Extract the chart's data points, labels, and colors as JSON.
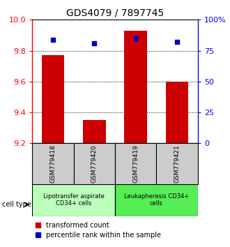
{
  "title": "GDS4079 / 7897745",
  "samples": [
    "GSM779418",
    "GSM779420",
    "GSM779419",
    "GSM779421"
  ],
  "transformed_counts": [
    9.77,
    9.35,
    9.93,
    9.6
  ],
  "percentile_ranks": [
    84,
    81,
    85,
    82
  ],
  "ylim_left": [
    9.2,
    10.0
  ],
  "ylim_right": [
    0,
    100
  ],
  "yticks_left": [
    9.2,
    9.4,
    9.6,
    9.8,
    10.0
  ],
  "yticks_right": [
    0,
    25,
    50,
    75,
    100
  ],
  "ytick_labels_right": [
    "0",
    "25",
    "50",
    "75",
    "100%"
  ],
  "bar_color": "#cc0000",
  "dot_color": "#0000cc",
  "bar_bottom": 9.2,
  "groups": [
    {
      "label": "Lipotransfer aspirate\nCD34+ cells",
      "samples_idx": [
        0,
        1
      ],
      "color": "#bbffbb"
    },
    {
      "label": "Leukapheresis CD34+\ncells",
      "samples_idx": [
        2,
        3
      ],
      "color": "#55ee55"
    }
  ],
  "cell_type_label": "cell type",
  "legend_bar_label": "transformed count",
  "legend_dot_label": "percentile rank within the sample",
  "label_area_color": "#cccccc",
  "title_fontsize": 10,
  "axis_fontsize": 8,
  "sample_fontsize": 6.5,
  "group_fontsize": 6,
  "legend_fontsize": 7
}
